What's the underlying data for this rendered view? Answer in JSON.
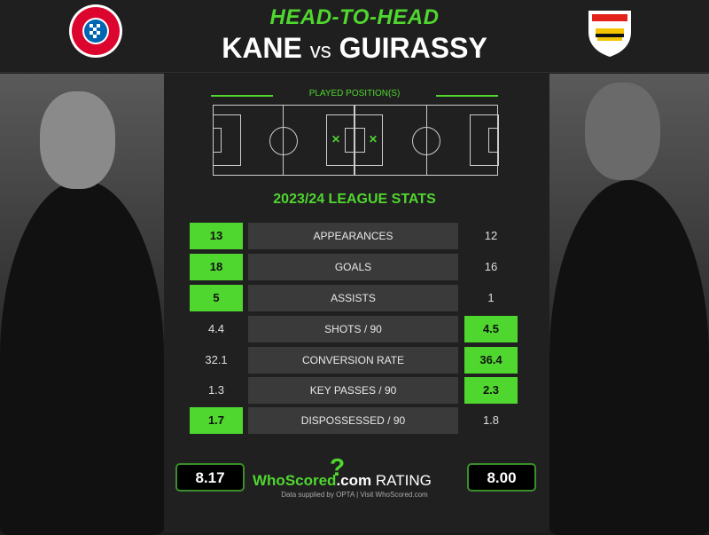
{
  "header": {
    "title": "HEAD-TO-HEAD",
    "player_left": "KANE",
    "vs": "vs",
    "player_right": "GUIRASSY"
  },
  "logos": {
    "left": "FC BAYERN MÜNCHEN",
    "right": "VfB"
  },
  "positions": {
    "label": "PLAYED POSITION(S)",
    "marker": "✕"
  },
  "season_title": "2023/24 LEAGUE STATS",
  "stats": [
    {
      "label": "APPEARANCES",
      "left": "13",
      "right": "12",
      "winner": "left"
    },
    {
      "label": "GOALS",
      "left": "18",
      "right": "16",
      "winner": "left"
    },
    {
      "label": "ASSISTS",
      "left": "5",
      "right": "1",
      "winner": "left"
    },
    {
      "label": "SHOTS / 90",
      "left": "4.4",
      "right": "4.5",
      "winner": "right"
    },
    {
      "label": "CONVERSION RATE",
      "left": "32.1",
      "right": "36.4",
      "winner": "right"
    },
    {
      "label": "KEY PASSES / 90",
      "left": "1.3",
      "right": "2.3",
      "winner": "right"
    },
    {
      "label": "DISPOSSESSED / 90",
      "left": "1.7",
      "right": "1.8",
      "winner": "left"
    }
  ],
  "rating": {
    "left": "8.17",
    "right": "8.00",
    "brand_a": "WhoScored",
    "brand_b": ".com",
    "label": "RATING",
    "credit": "Data supplied by OPTA | Visit WhoScored.com"
  },
  "colors": {
    "accent": "#4fd62f",
    "bg": "#202020",
    "label_bg": "#3a3a3a"
  }
}
